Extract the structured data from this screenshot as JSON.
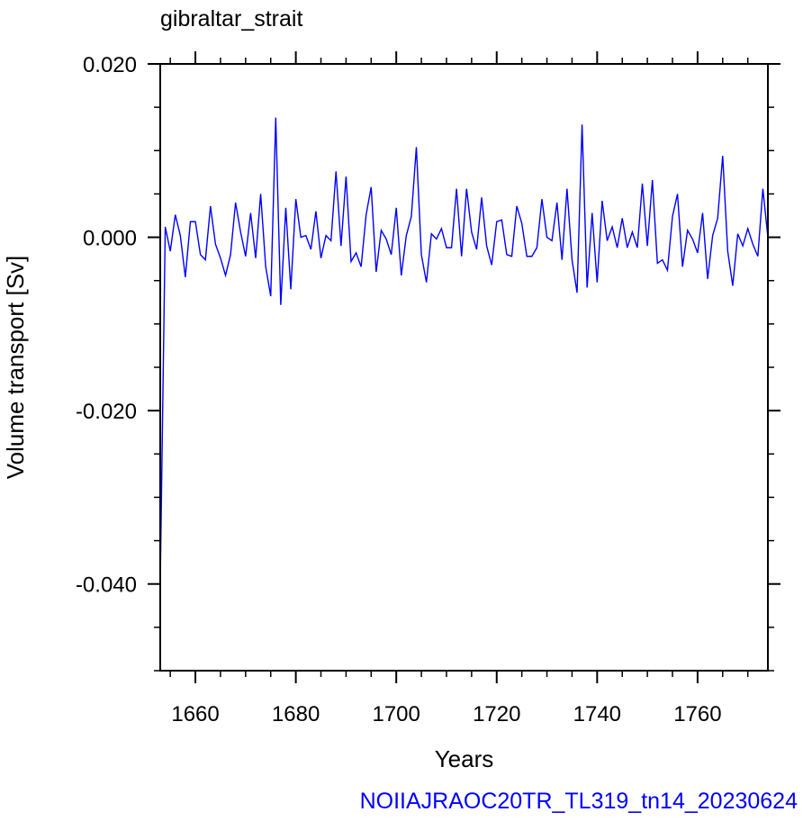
{
  "chart_data": {
    "type": "line",
    "title": "gibraltar_strait",
    "xlabel": "Years",
    "ylabel": "Volume transport [Sv]",
    "caption": "NOIIAJRAOC20TR_TL319_tn14_20230624",
    "xlim": [
      1653,
      1774
    ],
    "ylim": [
      -0.05,
      0.02
    ],
    "xticks": [
      1660,
      1680,
      1700,
      1720,
      1740,
      1760
    ],
    "xtick_labels": [
      "1660",
      "1680",
      "1700",
      "1720",
      "1740",
      "1760"
    ],
    "yticks": [
      -0.04,
      -0.02,
      0.0,
      0.02
    ],
    "ytick_labels": [
      "-0.040",
      "-0.020",
      "0.000",
      "0.020"
    ],
    "grid": false,
    "series": [
      {
        "color": "#0000ff",
        "x_start": 1653,
        "x_step": 1,
        "values": [
          -0.04,
          0.0012,
          -0.0016,
          0.0026,
          0.0002,
          -0.0046,
          0.0018,
          0.0018,
          -0.002,
          -0.0026,
          0.0036,
          -0.0008,
          -0.0024,
          -0.0044,
          -0.002,
          0.004,
          0.0006,
          -0.0022,
          0.0028,
          -0.0024,
          0.005,
          -0.0034,
          -0.0068,
          0.0138,
          -0.0078,
          0.0034,
          -0.006,
          0.0044,
          0.0,
          0.0002,
          -0.0014,
          0.003,
          -0.0024,
          0.0002,
          -0.0004,
          0.0076,
          -0.001,
          0.007,
          -0.0028,
          -0.0018,
          -0.0034,
          0.0026,
          0.0058,
          -0.004,
          0.0008,
          -0.0002,
          -0.002,
          0.0034,
          -0.0044,
          0.0002,
          0.0024,
          0.0104,
          -0.002,
          -0.0052,
          0.0004,
          -0.0002,
          0.001,
          -0.0012,
          -0.0012,
          0.0056,
          -0.0022,
          0.0056,
          0.0006,
          -0.0014,
          0.0046,
          -0.001,
          -0.0032,
          0.0018,
          0.002,
          -0.002,
          -0.0022,
          0.0036,
          0.0016,
          -0.0022,
          -0.0022,
          -0.0012,
          0.0044,
          0.0,
          -0.0004,
          0.004,
          -0.0026,
          0.0056,
          -0.0026,
          -0.0064,
          0.013,
          -0.0058,
          0.0028,
          -0.0052,
          0.0042,
          -0.0004,
          0.0012,
          -0.0012,
          0.0022,
          -0.0012,
          0.0006,
          -0.0012,
          0.0062,
          -0.001,
          0.0066,
          -0.003,
          -0.0026,
          -0.0038,
          0.0024,
          0.005,
          -0.0034,
          0.0008,
          -0.0002,
          -0.0018,
          0.0028,
          -0.0048,
          0.0002,
          0.0022,
          0.0094,
          -0.0016,
          -0.0056,
          0.0004,
          -0.001,
          0.001,
          -0.0008,
          -0.0022,
          0.0056,
          0.0
        ]
      }
    ]
  }
}
